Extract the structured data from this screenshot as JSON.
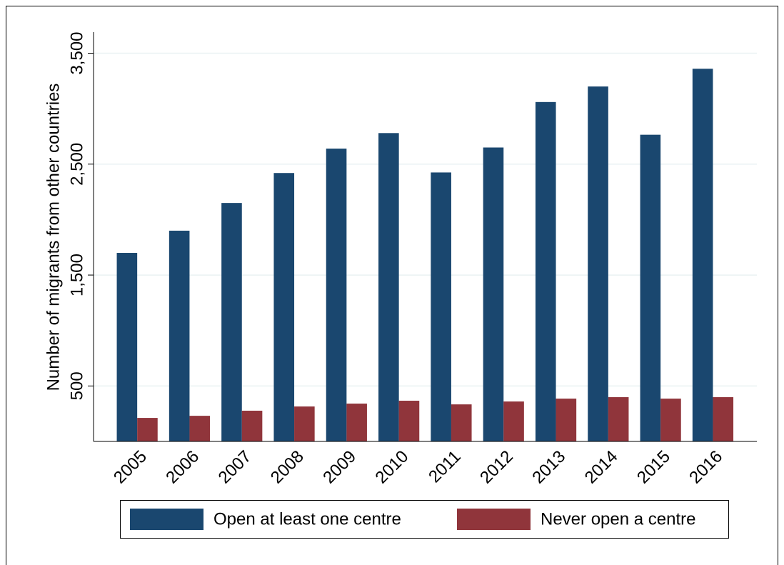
{
  "chart_data": {
    "type": "bar",
    "y_label": "Number of migrants from other countries",
    "categories": [
      "2005",
      "2006",
      "2007",
      "2008",
      "2009",
      "2010",
      "2011",
      "2012",
      "2013",
      "2014",
      "2015",
      "2016"
    ],
    "series": [
      {
        "name": "Open at least one centre",
        "color": "#1a476f",
        "values": [
          1700,
          1900,
          2150,
          2420,
          2640,
          2780,
          2425,
          2650,
          3060,
          3200,
          2765,
          3360
        ]
      },
      {
        "name": "Never open a centre",
        "color": "#90353b",
        "values": [
          212,
          231,
          277,
          315,
          341,
          367,
          334,
          360,
          386,
          399,
          386,
          399
        ]
      }
    ],
    "ylim": [
      0,
      3690
    ],
    "yticks": [
      500,
      {
        "value": 1500,
        "label": "1,500"
      },
      {
        "value": 2500,
        "label": "2,500"
      },
      {
        "value": 3500,
        "label": "3,500"
      }
    ],
    "grid": true
  }
}
